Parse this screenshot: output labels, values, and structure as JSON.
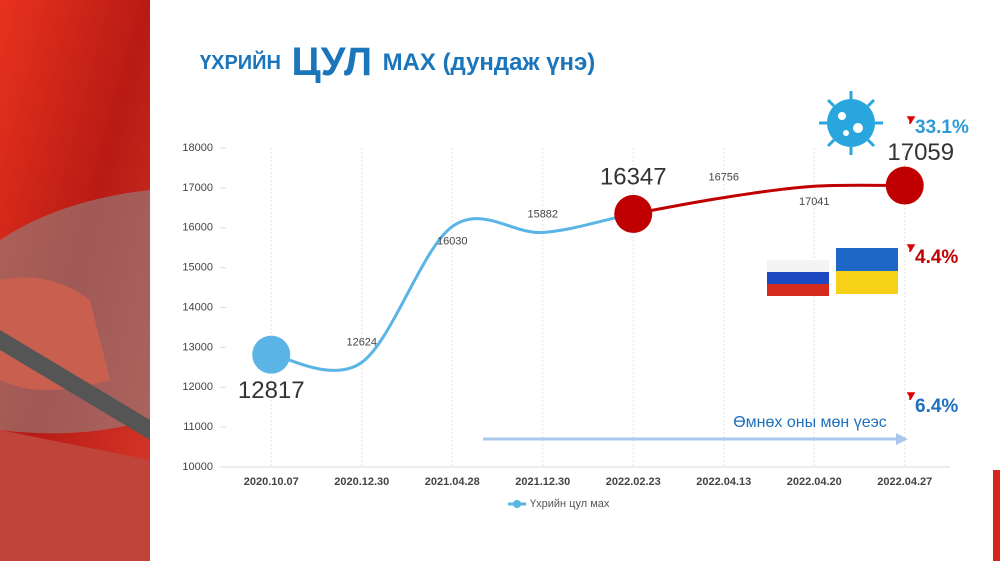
{
  "chart_data": {
    "type": "line",
    "title": [
      "ҮХРИЙН",
      "ЦУЛ",
      "МАХ (дундаж үнэ)"
    ],
    "categories": [
      "2020.10.07",
      "2020.12.30",
      "2021.04.28",
      "2021.12.30",
      "2022.02.23",
      "2022.04.13",
      "2022.04.20",
      "2022.04.27"
    ],
    "series": [
      {
        "name": "Үхрийн цул мах",
        "color": "#5ab4e5",
        "after_color": "#c00000",
        "after_index": 4,
        "values": [
          12817,
          12624,
          16030,
          15882,
          16347,
          16756,
          17041,
          17059
        ]
      }
    ],
    "ylim": [
      10000,
      18000
    ],
    "yticks": [
      10000,
      11000,
      12000,
      13000,
      14000,
      15000,
      16000,
      17000,
      18000
    ],
    "grid": "x",
    "legend": "bottom",
    "annotations": {
      "covid": "33.1%",
      "war": "4.4%",
      "yoy": "6.4%",
      "yoy_text": "Өмнөх оны мөн үеэс"
    }
  }
}
